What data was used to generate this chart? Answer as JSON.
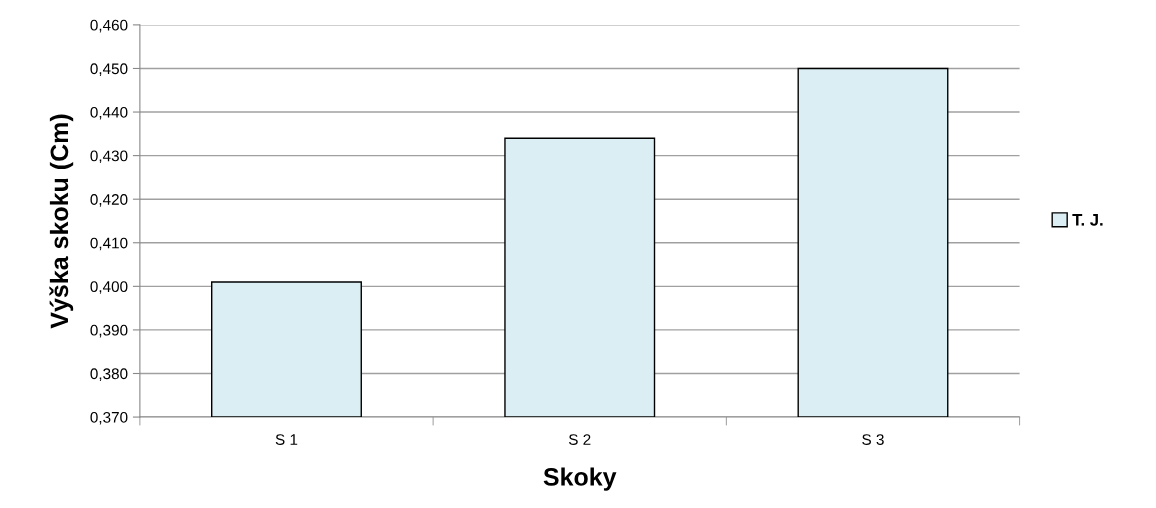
{
  "chart_data": {
    "type": "bar",
    "xlabel": "Skoky",
    "ylabel": "Výška skoku (Cm)",
    "categories": [
      "S 1",
      "S 2",
      "S 3"
    ],
    "series": [
      {
        "name": "T. J.",
        "color": "#daeef3",
        "values": [
          0.401,
          0.434,
          0.45
        ]
      }
    ],
    "ylim": [
      0.37,
      0.46
    ],
    "yticks": [
      {
        "value": 0.37,
        "label": "0,370"
      },
      {
        "value": 0.38,
        "label": "0,380"
      },
      {
        "value": 0.39,
        "label": "0,390"
      },
      {
        "value": 0.4,
        "label": "0,400"
      },
      {
        "value": 0.41,
        "label": "0,410"
      },
      {
        "value": 0.42,
        "label": "0,420"
      },
      {
        "value": 0.43,
        "label": "0,430"
      },
      {
        "value": 0.44,
        "label": "0,440"
      },
      {
        "value": 0.45,
        "label": "0,450"
      },
      {
        "value": 0.46,
        "label": "0,460"
      }
    ],
    "grid": "y",
    "legend": "right"
  }
}
